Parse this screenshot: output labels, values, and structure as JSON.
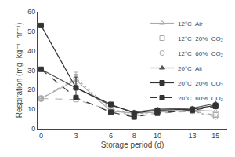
{
  "chart_data": {
    "type": "line",
    "x": [
      0,
      3,
      6,
      8,
      10,
      13,
      15
    ],
    "xlabel": "Storage period (d)",
    "ylabel": "Respiration (mg  kg⁻¹  hr⁻¹)",
    "xlim": [
      -0.3,
      16.0
    ],
    "ylim": [
      0,
      60
    ],
    "xticks": [
      0,
      3,
      6,
      8,
      10,
      13,
      15
    ],
    "yticks": [
      0,
      10,
      20,
      30,
      40,
      50,
      60
    ],
    "grid": false,
    "legend": "upper right",
    "series": [
      {
        "name": "12°C  Air",
        "color": "#aaaaaa",
        "marker": "triangle-up-open",
        "line_style": "solid",
        "values": [
          15.5,
          25.0,
          9.0,
          8.0,
          8.5,
          9.5,
          9.0
        ],
        "error_bars": [
          1.5,
          3.0,
          0,
          0,
          0,
          0,
          0
        ]
      },
      {
        "name": "12°C  20%  CO₂",
        "color": "#aaaaaa",
        "marker": "square-open",
        "line_style": "dashed",
        "values": [
          15.5,
          15.0,
          9.5,
          6.5,
          8.0,
          9.0,
          7.0
        ],
        "error_bars": [
          0,
          0,
          0,
          0,
          0,
          0,
          0
        ]
      },
      {
        "name": "12°C  60%  CO₂",
        "color": "#aaaaaa",
        "marker": "circle-open",
        "line_style": "dotted",
        "values": [
          15.5,
          26.0,
          10.0,
          7.5,
          8.5,
          9.0,
          6.0
        ],
        "error_bars": [
          0,
          3.0,
          0,
          0,
          0,
          0,
          0
        ]
      },
      {
        "name": "20°C  Air",
        "color": "#555555",
        "marker": "triangle-up",
        "line_style": "solid",
        "values": [
          30.5,
          21.0,
          12.0,
          8.5,
          10.0,
          10.5,
          13.0
        ],
        "error_bars": [
          0,
          0,
          0,
          0,
          0,
          0,
          0
        ]
      },
      {
        "name": "20°C  20%  CO₂",
        "color": "#333333",
        "marker": "square",
        "line_style": "solid",
        "values": [
          53.0,
          21.0,
          12.5,
          8.0,
          9.5,
          10.0,
          12.0
        ],
        "error_bars": [
          0,
          5.5,
          0,
          0,
          0,
          0,
          0
        ]
      },
      {
        "name": "20°C  60%  CO₂",
        "color": "#333333",
        "marker": "square",
        "line_style": "dashed",
        "values": [
          30.5,
          16.0,
          8.5,
          6.0,
          8.0,
          9.5,
          11.5
        ],
        "error_bars": [
          0,
          0,
          0,
          0,
          0,
          0,
          0
        ]
      }
    ]
  }
}
